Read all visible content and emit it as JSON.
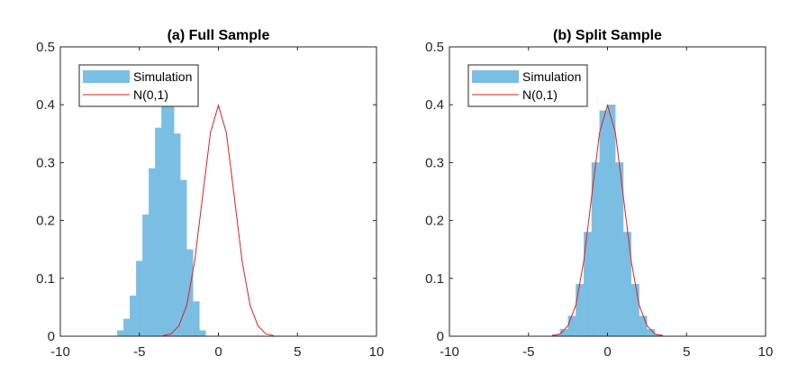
{
  "chart_data": [
    {
      "type": "histogram",
      "title": "(a)  Full Sample",
      "xlim": [
        -10,
        10
      ],
      "ylim": [
        0,
        0.5
      ],
      "xticks": [
        -10,
        -5,
        0,
        5,
        10
      ],
      "yticks": [
        0,
        0.1,
        0.2,
        0.3,
        0.4,
        0.5
      ],
      "xtick_labels": [
        "-10",
        "-5",
        "0",
        "5",
        "10"
      ],
      "ytick_labels": [
        "0",
        "0.1",
        "0.2",
        "0.3",
        "0.4",
        "0.5"
      ],
      "legend": {
        "placement": "top-left",
        "entries": [
          "Simulation",
          "N(0,1)"
        ]
      },
      "series": [
        {
          "name": "Simulation",
          "kind": "histogram",
          "color": "#7abfe3",
          "bin_centers": [
            -6.2,
            -5.8,
            -5.4,
            -5.0,
            -4.6,
            -4.2,
            -3.8,
            -3.4,
            -3.0,
            -2.6,
            -2.2,
            -1.8,
            -1.4,
            -1.0
          ],
          "density": [
            0.01,
            0.03,
            0.07,
            0.13,
            0.21,
            0.29,
            0.36,
            0.4,
            0.4,
            0.35,
            0.27,
            0.15,
            0.06,
            0.01
          ]
        },
        {
          "name": "N(0,1)",
          "kind": "line",
          "color": "#e0211b",
          "x": [
            -3.5,
            -3.0,
            -2.5,
            -2.0,
            -1.5,
            -1.0,
            -0.5,
            0.0,
            0.5,
            1.0,
            1.5,
            2.0,
            2.5,
            3.0,
            3.5
          ],
          "y": [
            0.001,
            0.004,
            0.018,
            0.054,
            0.13,
            0.242,
            0.352,
            0.399,
            0.352,
            0.242,
            0.13,
            0.054,
            0.018,
            0.004,
            0.001
          ]
        }
      ]
    },
    {
      "type": "histogram",
      "title": "(b)  Split Sample",
      "xlim": [
        -10,
        10
      ],
      "ylim": [
        0,
        0.5
      ],
      "xticks": [
        -10,
        -5,
        0,
        5,
        10
      ],
      "yticks": [
        0,
        0.1,
        0.2,
        0.3,
        0.4,
        0.5
      ],
      "xtick_labels": [
        "-10",
        "-5",
        "0",
        "5",
        "10"
      ],
      "ytick_labels": [
        "0",
        "0.1",
        "0.2",
        "0.3",
        "0.4",
        "0.5"
      ],
      "legend": {
        "placement": "top-left",
        "entries": [
          "Simulation",
          "N(0,1)"
        ]
      },
      "series": [
        {
          "name": "Simulation",
          "kind": "histogram",
          "color": "#7abfe3",
          "bin_centers": [
            -3.25,
            -2.75,
            -2.25,
            -1.75,
            -1.25,
            -0.75,
            -0.25,
            0.25,
            0.75,
            1.25,
            1.75,
            2.25,
            2.75,
            3.25
          ],
          "density": [
            0.003,
            0.012,
            0.035,
            0.09,
            0.18,
            0.3,
            0.39,
            0.4,
            0.3,
            0.18,
            0.09,
            0.035,
            0.012,
            0.003
          ]
        },
        {
          "name": "N(0,1)",
          "kind": "line",
          "color": "#e0211b",
          "x": [
            -3.5,
            -3.0,
            -2.5,
            -2.0,
            -1.5,
            -1.0,
            -0.5,
            0.0,
            0.5,
            1.0,
            1.5,
            2.0,
            2.5,
            3.0,
            3.5
          ],
          "y": [
            0.001,
            0.004,
            0.018,
            0.054,
            0.13,
            0.242,
            0.352,
            0.399,
            0.352,
            0.242,
            0.13,
            0.054,
            0.018,
            0.004,
            0.001
          ]
        }
      ]
    }
  ]
}
